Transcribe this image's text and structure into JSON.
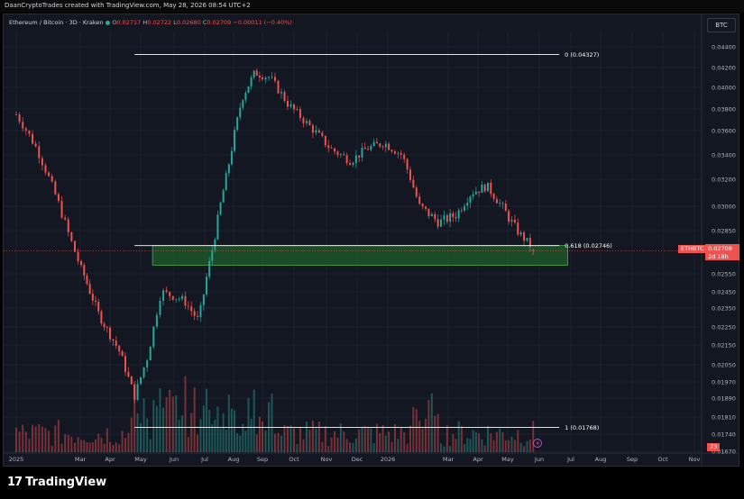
{
  "watermark": "DaanCryptoTrades created with TradingView.com, May 28, 2026 08:54 UTC+2",
  "legend": {
    "symbol": "Ethereum / Bitcoin · 3D · Kraken",
    "o_label": "O",
    "o": "0.02717",
    "h_label": "H",
    "h": "0.02722",
    "l_label": "L",
    "l": "0.02680",
    "c_label": "C",
    "c": "0.02709",
    "change": "−0.00011 (−0.40%)"
  },
  "currency_button": "BTC",
  "brand": "TradingView",
  "price_badge": {
    "symbol": "ETHBTC",
    "price": "0.02709",
    "countdown": "2d 18h"
  },
  "volume_badge": "73",
  "colors": {
    "background": "#131722",
    "up": "#26a69a",
    "down": "#ef5350",
    "zone_fill": "#1f5f2a",
    "zone_border": "#4caf50",
    "level_line": "#ffffff"
  },
  "chart_data": {
    "type": "candlestick",
    "title": "Ethereum / Bitcoin · 3D · Kraken",
    "y_axis": {
      "ticks": [
        "0.04400",
        "0.04200",
        "0.04000",
        "0.03800",
        "0.03600",
        "0.03400",
        "0.03200",
        "0.03000",
        "0.02850",
        "0.02550",
        "0.02450",
        "0.02350",
        "0.02250",
        "0.02150",
        "0.02050",
        "0.01970",
        "0.01890",
        "0.01810",
        "0.01740",
        "0.01670"
      ],
      "position": "right"
    },
    "x_axis": {
      "ticks": [
        "2025",
        "Mar",
        "Apr",
        "May",
        "Jun",
        "Jul",
        "Aug",
        "Sep",
        "Oct",
        "Nov",
        "Dec",
        "2026",
        "Mar",
        "Apr",
        "May",
        "Jun",
        "Jul",
        "Aug",
        "Sep",
        "Oct",
        "Nov"
      ]
    },
    "fib_levels": [
      {
        "label": "0 (0.04327)",
        "value": 0.04327
      },
      {
        "label": "0.618 (0.02746)",
        "value": 0.02746
      },
      {
        "label": "1 (0.01768)",
        "value": 0.01768
      }
    ],
    "support_zone": {
      "top": 0.02746,
      "bottom": 0.0261,
      "start": "May 2025",
      "end": "Jun 2026"
    },
    "price_path": [
      {
        "date": "2025-01-01",
        "close": 0.0375
      },
      {
        "date": "2025-01-20",
        "close": 0.0345
      },
      {
        "date": "2025-02-10",
        "close": 0.03
      },
      {
        "date": "2025-03-01",
        "close": 0.026
      },
      {
        "date": "2025-03-20",
        "close": 0.0232
      },
      {
        "date": "2025-04-10",
        "close": 0.0212
      },
      {
        "date": "2025-04-25",
        "close": 0.019
      },
      {
        "date": "2025-05-08",
        "close": 0.021
      },
      {
        "date": "2025-05-20",
        "close": 0.0245
      },
      {
        "date": "2025-06-10",
        "close": 0.024
      },
      {
        "date": "2025-06-25",
        "close": 0.0228
      },
      {
        "date": "2025-07-10",
        "close": 0.0275
      },
      {
        "date": "2025-07-25",
        "close": 0.0325
      },
      {
        "date": "2025-08-10",
        "close": 0.039
      },
      {
        "date": "2025-08-24",
        "close": 0.0415
      },
      {
        "date": "2025-09-08",
        "close": 0.041
      },
      {
        "date": "2025-09-25",
        "close": 0.0385
      },
      {
        "date": "2025-10-15",
        "close": 0.0365
      },
      {
        "date": "2025-11-05",
        "close": 0.0345
      },
      {
        "date": "2025-11-25",
        "close": 0.0335
      },
      {
        "date": "2025-12-10",
        "close": 0.0345
      },
      {
        "date": "2025-12-28",
        "close": 0.035
      },
      {
        "date": "2026-01-15",
        "close": 0.034
      },
      {
        "date": "2026-02-01",
        "close": 0.03
      },
      {
        "date": "2026-02-20",
        "close": 0.029
      },
      {
        "date": "2026-03-10",
        "close": 0.0295
      },
      {
        "date": "2026-03-25",
        "close": 0.031
      },
      {
        "date": "2026-04-10",
        "close": 0.0315
      },
      {
        "date": "2026-04-25",
        "close": 0.03
      },
      {
        "date": "2026-05-10",
        "close": 0.0285
      },
      {
        "date": "2026-05-28",
        "close": 0.02709
      }
    ]
  }
}
